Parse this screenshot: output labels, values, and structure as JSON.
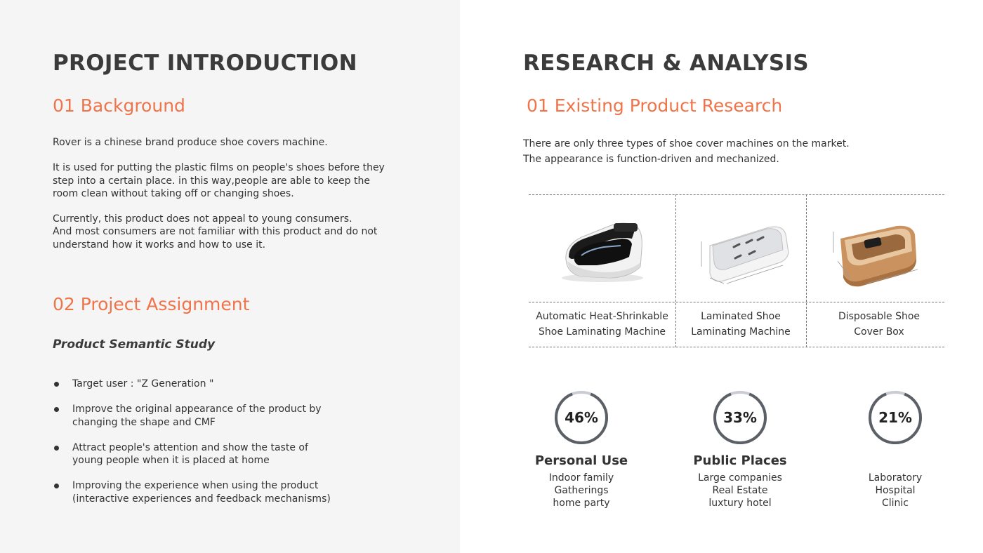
{
  "left": {
    "title": "PROJECT INTRODUCTION",
    "background_heading": "01 Background",
    "background_paragraphs": [
      [
        "Rover is a chinese brand produce shoe covers machine."
      ],
      [
        "It is used for putting the plastic films on people's shoes before they",
        "step into a certain place. in this way,people are able to keep the",
        "room clean without taking off or changing shoes."
      ],
      [
        "Currently, this product does not appeal to young consumers.",
        "And most consumers are not familiar with this product and do not",
        "understand how it works and how to use it."
      ]
    ],
    "assignment_heading": "02   Project Assignment",
    "assignment_subtitle": "Product Semantic Study",
    "bullets": [
      [
        "Target user : \"Z Generation \""
      ],
      [
        "Improve the original appearance of the product by",
        "changing the shape and CMF"
      ],
      [
        "Attract people's attention and show the taste of",
        "young people when it is placed at home"
      ],
      [
        "Improving the experience when using the product",
        "(interactive experiences and feedback mechanisms)"
      ]
    ]
  },
  "right": {
    "title": "RESEARCH & ANALYSIS",
    "research_heading": "01 Existing Product Research",
    "intro_lines": [
      "There are only three types of shoe cover machines on the market.",
      "The appearance is function-driven and mechanized."
    ],
    "products": [
      {
        "label_lines": [
          "Automatic Heat-Shrinkable",
          "Shoe Laminating Machine"
        ],
        "image": "black-shoe-cover-machine-image"
      },
      {
        "label_lines": [
          "Laminated Shoe",
          "Laminating Machine"
        ],
        "image": "white-laminating-machine-image"
      },
      {
        "label_lines": [
          "Disposable Shoe",
          "Cover Box"
        ],
        "image": "gold-cover-box-image"
      }
    ],
    "stats": [
      {
        "value": 46,
        "label": "46%",
        "title": "Personal Use",
        "lines": [
          "Indoor family",
          "Gatherings",
          "home party"
        ]
      },
      {
        "value": 33,
        "label": "33%",
        "title": "Public Places",
        "lines": [
          "Large companies",
          "Real Estate",
          "luxtury hotel"
        ]
      },
      {
        "value": 21,
        "label": "21%",
        "title": "",
        "lines": [
          "Laboratory",
          "Hospital",
          "Clinic"
        ]
      }
    ],
    "colors": {
      "accent": "#f0744a",
      "ring": "#5b5f66",
      "ring_track": "#c9ccd2"
    }
  }
}
